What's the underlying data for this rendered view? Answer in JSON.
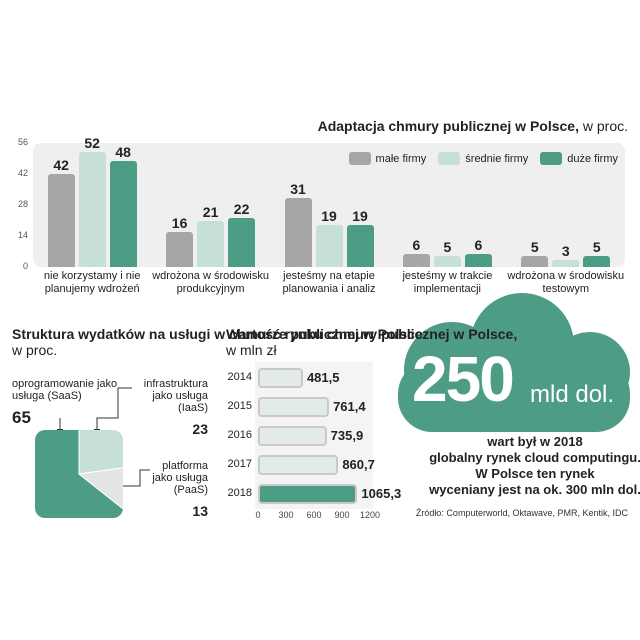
{
  "chart_data": [
    {
      "type": "bar",
      "title": "Adaptacja chmury publicznej w Polsce,",
      "subtitle": "w proc.",
      "categories": [
        "nie korzystamy i nie planujemy wdrożeń",
        "wdrożona w środowisku produkcyjnym",
        "jesteśmy na etapie planowania i analiz",
        "jesteśmy w trakcie implementacji",
        "wdrożona w środowisku testowym"
      ],
      "series": [
        {
          "name": "małe firmy",
          "color": "#a6a6a6",
          "values": [
            42,
            16,
            31,
            6,
            5
          ]
        },
        {
          "name": "średnie firmy",
          "color": "#c6e0d7",
          "values": [
            52,
            21,
            19,
            5,
            3
          ]
        },
        {
          "name": "duże firmy",
          "color": "#4d9c86",
          "values": [
            48,
            22,
            19,
            6,
            5
          ]
        }
      ],
      "ylim": [
        0,
        56
      ],
      "yticks": [
        0,
        14,
        28,
        42,
        56
      ],
      "legend": "top-right"
    },
    {
      "type": "pie",
      "title": "Struktura wydatków na usługi w chmurze publicznej w Polsce",
      "subtitle": "w proc.",
      "categories": [
        "oprogramowanie jako usługa (SaaS)",
        "infrastruktura jako usługa (IaaS)",
        "platforma jako usługa (PaaS)"
      ],
      "values": [
        65,
        23,
        13
      ],
      "colors": [
        "#4d9c86",
        "#c6e0d7",
        "#e4e4e4"
      ]
    },
    {
      "type": "hbar",
      "title": "Wartość rynku chmury publicznej w Polsce,",
      "subtitle": "w mln zł",
      "categories": [
        "2014",
        "2015",
        "2016",
        "2017",
        "2018"
      ],
      "values": [
        481.5,
        761.4,
        735.9,
        860.7,
        1065.3
      ],
      "value_labels": [
        "481,5",
        "761,4",
        "735,9",
        "860,7",
        "1065,3"
      ],
      "colors": [
        "#e2ebe7",
        "#e2ebe7",
        "#e2ebe7",
        "#e2ebe7",
        "#4d9c86"
      ],
      "xlim": [
        0,
        1200
      ],
      "xticks": [
        0,
        300,
        600,
        900,
        1200
      ]
    }
  ],
  "highlight": {
    "value": "250",
    "unit": "mld dol.",
    "text": [
      "wart był w 2018",
      "globalny rynek cloud computingu.",
      "W Polsce ten rynek",
      "wyceniany jest na ok. 300 mln dol."
    ]
  },
  "source": "Źródło: Computerworld, Oktawave, PMR, Kentik, IDC"
}
